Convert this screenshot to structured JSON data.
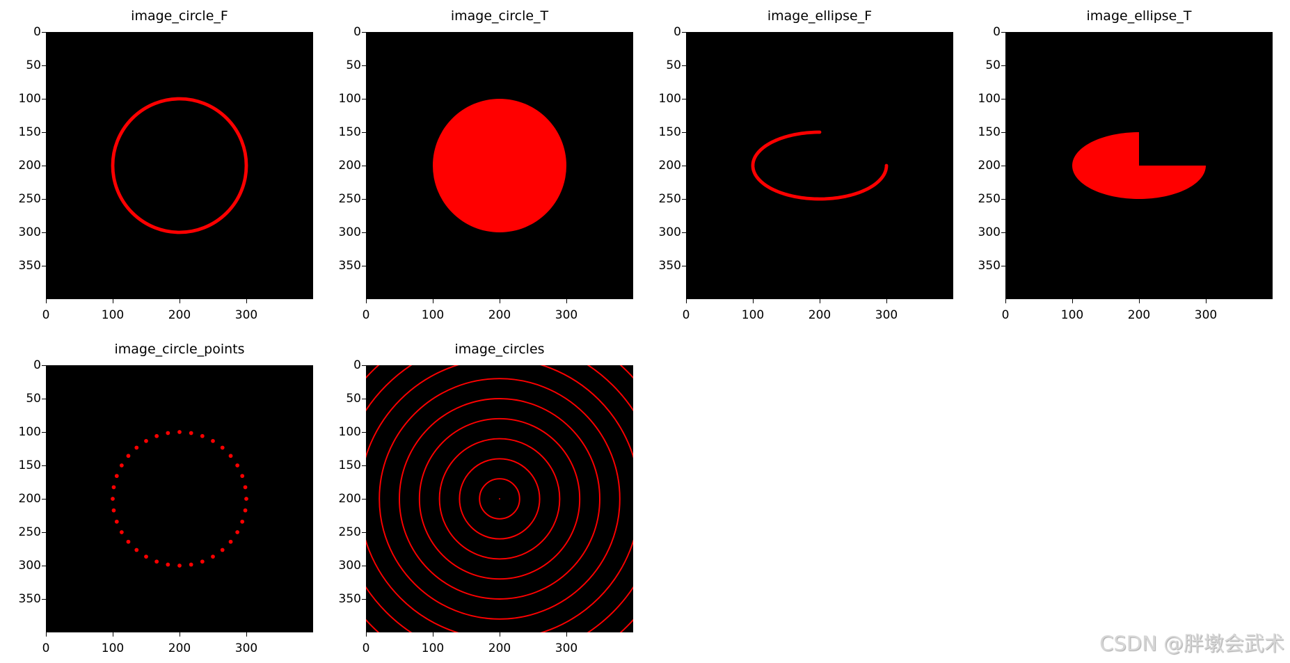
{
  "chart_data": [
    {
      "type": "image",
      "title": "image_circle_F",
      "xlim": [
        0,
        400
      ],
      "ylim": [
        400,
        0
      ],
      "xticks": [
        0,
        100,
        200,
        300
      ],
      "yticks": [
        0,
        50,
        100,
        150,
        200,
        250,
        300,
        350
      ],
      "background": "#000000",
      "color": "#ff0000",
      "shapes": [
        {
          "kind": "circle",
          "center": [
            200,
            200
          ],
          "radius": 100,
          "thickness": 5,
          "filled": false
        }
      ]
    },
    {
      "type": "image",
      "title": "image_circle_T",
      "xlim": [
        0,
        400
      ],
      "ylim": [
        400,
        0
      ],
      "xticks": [
        0,
        100,
        200,
        300
      ],
      "yticks": [
        0,
        50,
        100,
        150,
        200,
        250,
        300,
        350
      ],
      "background": "#000000",
      "color": "#ff0000",
      "shapes": [
        {
          "kind": "circle",
          "center": [
            200,
            200
          ],
          "radius": 100,
          "filled": true
        }
      ]
    },
    {
      "type": "image",
      "title": "image_ellipse_F",
      "xlim": [
        0,
        400
      ],
      "ylim": [
        400,
        0
      ],
      "xticks": [
        0,
        100,
        200,
        300
      ],
      "yticks": [
        0,
        50,
        100,
        150,
        200,
        250,
        300,
        350
      ],
      "background": "#000000",
      "color": "#ff0000",
      "shapes": [
        {
          "kind": "ellipse",
          "center": [
            200,
            200
          ],
          "axes": [
            100,
            50
          ],
          "start_angle": 0,
          "end_angle": 270,
          "thickness": 5,
          "filled": false
        }
      ]
    },
    {
      "type": "image",
      "title": "image_ellipse_T",
      "xlim": [
        0,
        400
      ],
      "ylim": [
        400,
        0
      ],
      "xticks": [
        0,
        100,
        200,
        300
      ],
      "yticks": [
        0,
        50,
        100,
        150,
        200,
        250,
        300,
        350
      ],
      "background": "#000000",
      "color": "#ff0000",
      "shapes": [
        {
          "kind": "ellipse",
          "center": [
            200,
            200
          ],
          "axes": [
            100,
            50
          ],
          "start_angle": 0,
          "end_angle": 270,
          "filled": true
        }
      ]
    },
    {
      "type": "image",
      "title": "image_circle_points",
      "xlim": [
        0,
        400
      ],
      "ylim": [
        400,
        0
      ],
      "xticks": [
        0,
        100,
        200,
        300
      ],
      "yticks": [
        0,
        50,
        100,
        150,
        200,
        250,
        300,
        350
      ],
      "background": "#000000",
      "color": "#ff0000",
      "shapes": [
        {
          "kind": "points_on_circle",
          "center": [
            200,
            200
          ],
          "radius": 100,
          "count": 36,
          "point_radius": 3
        }
      ]
    },
    {
      "type": "image",
      "title": "image_circles",
      "xlim": [
        0,
        400
      ],
      "ylim": [
        400,
        0
      ],
      "xticks": [
        0,
        100,
        200,
        300
      ],
      "yticks": [
        0,
        50,
        100,
        150,
        200,
        250,
        300,
        350
      ],
      "background": "#000000",
      "color": "#ff0000",
      "shapes": [
        {
          "kind": "concentric_circles",
          "center": [
            200,
            200
          ],
          "radii": [
            0,
            30,
            60,
            90,
            120,
            150,
            180,
            210,
            240,
            270
          ],
          "thickness": 2
        }
      ]
    }
  ],
  "watermark": "CSDN @胖墩会武术"
}
